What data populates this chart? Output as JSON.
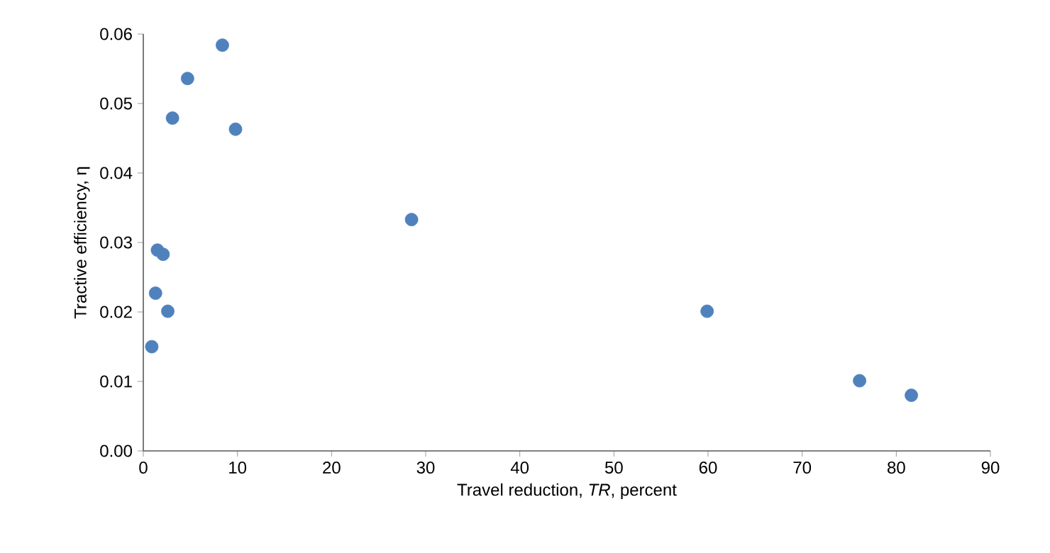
{
  "chart_data": {
    "type": "scatter",
    "xlabel": "Travel reduction, *TR*, percent",
    "ylabel": "Tractive efficiency, η",
    "x": [
      0.9,
      1.3,
      1.5,
      2.1,
      2.6,
      3.1,
      4.7,
      8.4,
      9.8,
      28.5,
      59.9,
      76.1,
      81.6
    ],
    "values": [
      0.015,
      0.0227,
      0.0289,
      0.0283,
      0.0201,
      0.0479,
      0.0536,
      0.0584,
      0.0463,
      0.0333,
      0.0201,
      0.0101,
      0.008
    ],
    "color": "#4f81bd",
    "marker": "circle",
    "xlim": [
      0,
      90
    ],
    "xticks": [
      0,
      10,
      20,
      30,
      40,
      50,
      60,
      70,
      80,
      90
    ],
    "ylim": [
      0,
      0.06
    ],
    "yticks": [
      {
        "value": 0,
        "label": "0.00"
      },
      {
        "value": 0.01,
        "label": "0.01"
      },
      {
        "value": 0.02,
        "label": "0.02"
      },
      {
        "value": 0.03,
        "label": "0.03"
      },
      {
        "value": 0.04,
        "label": "0.04"
      },
      {
        "value": 0.05,
        "label": "0.05"
      },
      {
        "value": 0.06,
        "label": "0.06"
      }
    ]
  }
}
